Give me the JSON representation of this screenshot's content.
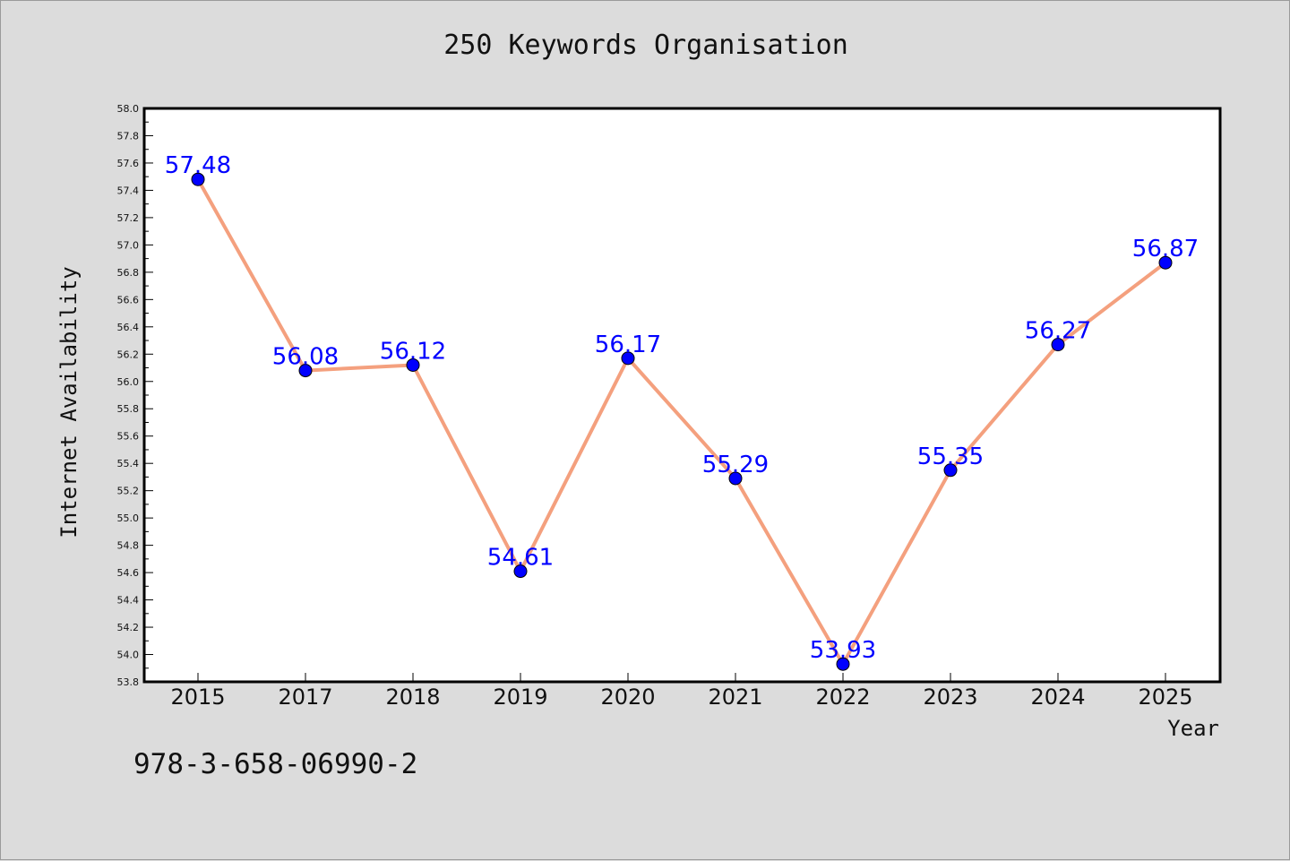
{
  "chart_data": {
    "type": "line",
    "title": "250 Keywords Organisation",
    "xlabel": "Year",
    "ylabel": "Internet Availability",
    "categories": [
      "2015",
      "2017",
      "2018",
      "2019",
      "2020",
      "2021",
      "2022",
      "2023",
      "2024",
      "2025"
    ],
    "values": [
      57.48,
      56.08,
      56.12,
      54.61,
      56.17,
      55.29,
      53.93,
      55.35,
      56.27,
      56.87
    ],
    "data_labels": [
      "57.48",
      "56.08",
      "56.12",
      "54.61",
      "56.17",
      "55.29",
      "53.93",
      "55.35",
      "56.27",
      "56.87"
    ],
    "ylim": [
      53.8,
      58.0
    ],
    "yticks": [
      "53.8",
      "54.0",
      "54.2",
      "54.4",
      "54.6",
      "54.8",
      "55.0",
      "55.2",
      "55.4",
      "55.6",
      "55.8",
      "56.0",
      "56.2",
      "56.4",
      "56.6",
      "56.8",
      "57.0",
      "57.2",
      "57.4",
      "57.6",
      "57.8",
      "58.0"
    ],
    "line_color": "#f4a07e",
    "marker_color": "#0000ff",
    "label_color": "#0000ff",
    "grid": false
  },
  "footer_text": "978-3-658-06990-2"
}
